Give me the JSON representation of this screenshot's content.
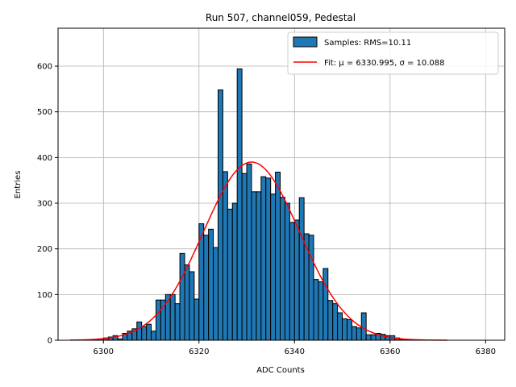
{
  "chart_data": {
    "type": "bar",
    "title": "Run 507, channel059, Pedestal",
    "xlabel": "ADC Counts",
    "ylabel": "Entries",
    "xlim": [
      6290.5,
      6384.0
    ],
    "ylim": [
      0,
      683
    ],
    "grid": true,
    "legend_position": "top-right",
    "x_ticks": [
      6300,
      6320,
      6340,
      6360,
      6380
    ],
    "y_ticks": [
      0,
      100,
      200,
      300,
      400,
      500,
      600
    ],
    "bin_width": 1,
    "bar_color": "#1f77b4",
    "fit_color": "#ff0000",
    "legend": [
      {
        "label": "Samples: RMS=10.11",
        "kind": "patch"
      },
      {
        "label": "Fit: μ = 6330.995, σ = 10.088",
        "kind": "line"
      }
    ],
    "histogram": {
      "bin_left_edges": [
        6294,
        6295,
        6296,
        6297,
        6298,
        6299,
        6300,
        6301,
        6302,
        6303,
        6304,
        6305,
        6306,
        6307,
        6308,
        6309,
        6310,
        6311,
        6312,
        6313,
        6314,
        6315,
        6316,
        6317,
        6318,
        6319,
        6320,
        6321,
        6322,
        6323,
        6324,
        6325,
        6326,
        6327,
        6328,
        6329,
        6330,
        6331,
        6332,
        6333,
        6334,
        6335,
        6336,
        6337,
        6338,
        6339,
        6340,
        6341,
        6342,
        6343,
        6344,
        6345,
        6346,
        6347,
        6348,
        6349,
        6350,
        6351,
        6352,
        6353,
        6354,
        6355,
        6356,
        6357,
        6358,
        6359,
        6360,
        6361,
        6362,
        6363,
        6364,
        6365,
        6366,
        6367,
        6368,
        6369,
        6370
      ],
      "counts": [
        0,
        0,
        0,
        1,
        2,
        3,
        5,
        7,
        10,
        3,
        15,
        20,
        25,
        40,
        30,
        35,
        20,
        88,
        88,
        100,
        100,
        80,
        190,
        165,
        150,
        90,
        255,
        230,
        243,
        203,
        548,
        369,
        287,
        300,
        594,
        365,
        386,
        325,
        325,
        358,
        355,
        320,
        368,
        313,
        300,
        258,
        263,
        312,
        233,
        230,
        133,
        128,
        157,
        87,
        80,
        60,
        47,
        45,
        30,
        27,
        60,
        12,
        12,
        15,
        13,
        10,
        10,
        5,
        2,
        1,
        0,
        0,
        0,
        0,
        0,
        0,
        0
      ]
    },
    "fit": {
      "mu": 6330.995,
      "sigma": 10.088,
      "amplitude": 390,
      "x_range": [
        6293,
        6372
      ]
    }
  }
}
